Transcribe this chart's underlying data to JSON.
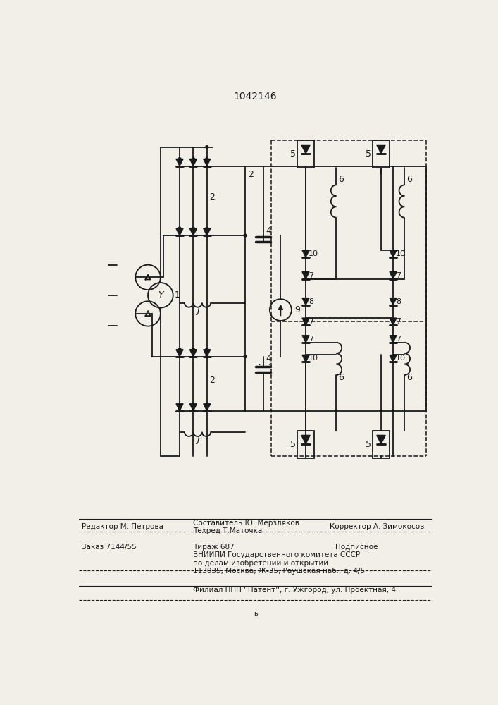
{
  "title": "1042146",
  "bg_color": "#f2efe8",
  "lc": "#1a1a1a",
  "lw": 1.3,
  "footer": {
    "ed": "Редактор М. Петрова",
    "comp_top": "Составитель Ю. Мерзляков",
    "comp_bot": "Техред Т.Маточка",
    "corr": "Корректор А. Зимокосов",
    "order": "Заказ 7144/55",
    "tirazh": "Тираж 687",
    "podp": "Подписное",
    "vniip1": "ВНИИПИ Государственного комитета СССР",
    "vniip2": "по делам изобретений и открытий",
    "vniip3": "113035, Москва, Ж-35, Раушская наб., д. 4/5",
    "filial": "Филиал ППП ''Патент'', г. Ужгород, ул. Проектная, 4"
  }
}
